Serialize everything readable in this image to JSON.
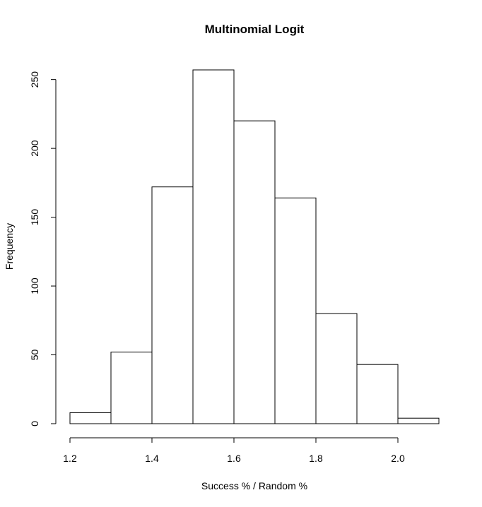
{
  "chart_data": {
    "type": "bar",
    "subtype": "histogram",
    "title": "Multinomial Logit",
    "xlabel": "Success % / Random %",
    "ylabel": "Frequency",
    "bins": [
      {
        "from": 1.2,
        "to": 1.3,
        "count": 8
      },
      {
        "from": 1.3,
        "to": 1.4,
        "count": 52
      },
      {
        "from": 1.4,
        "to": 1.5,
        "count": 172
      },
      {
        "from": 1.5,
        "to": 1.6,
        "count": 257
      },
      {
        "from": 1.6,
        "to": 1.7,
        "count": 220
      },
      {
        "from": 1.7,
        "to": 1.8,
        "count": 164
      },
      {
        "from": 1.8,
        "to": 1.9,
        "count": 80
      },
      {
        "from": 1.9,
        "to": 2.0,
        "count": 43
      },
      {
        "from": 2.0,
        "to": 2.1,
        "count": 4
      }
    ],
    "xlim": [
      1.2,
      2.1
    ],
    "ylim": [
      0,
      257
    ],
    "xticks": [
      {
        "value": 1.2,
        "label": "1.2"
      },
      {
        "value": 1.4,
        "label": "1.4"
      },
      {
        "value": 1.6,
        "label": "1.6"
      },
      {
        "value": 1.8,
        "label": "1.8"
      },
      {
        "value": 2.0,
        "label": "2.0"
      }
    ],
    "yticks": [
      {
        "value": 0,
        "label": "0"
      },
      {
        "value": 50,
        "label": "50"
      },
      {
        "value": 100,
        "label": "100"
      },
      {
        "value": 150,
        "label": "150"
      },
      {
        "value": 200,
        "label": "200"
      },
      {
        "value": 250,
        "label": "250"
      }
    ],
    "grid": false,
    "bar_fill": "#ffffff",
    "bar_stroke": "#000000"
  }
}
